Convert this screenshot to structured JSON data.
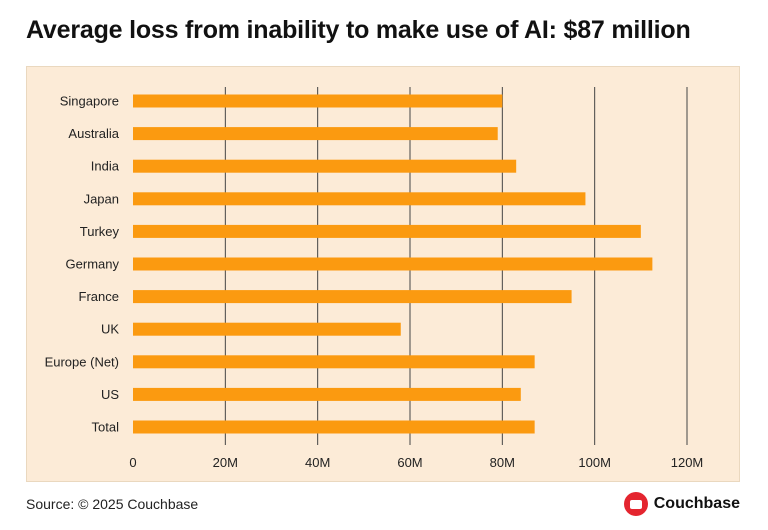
{
  "title": "Average loss from inability to make use of AI: $87 million",
  "source": "Source: © 2025 Couchbase",
  "brand": {
    "name": "Couchbase",
    "logo_icon": "couchbase-logo-icon"
  },
  "colors": {
    "bar": "#fb9a10",
    "panel": "#fcebd7",
    "grid": "#444444",
    "brand": "#e4252f"
  },
  "chart_data": {
    "type": "bar",
    "orientation": "horizontal",
    "categories": [
      "Singapore",
      "Australia",
      "India",
      "Japan",
      "Turkey",
      "Germany",
      "France",
      "UK",
      "Europe (Net)",
      "US",
      "Total"
    ],
    "values": [
      80,
      79,
      83,
      98,
      110,
      112.5,
      95,
      58,
      87,
      84,
      87
    ],
    "unit": "M",
    "xlim": [
      0,
      120
    ],
    "ticks": [
      0,
      20,
      40,
      60,
      80,
      100,
      120
    ],
    "tick_labels": [
      "0",
      "20M",
      "40M",
      "60M",
      "80M",
      "100M",
      "120M"
    ],
    "grid": true,
    "title": "",
    "xlabel": "",
    "ylabel": ""
  }
}
